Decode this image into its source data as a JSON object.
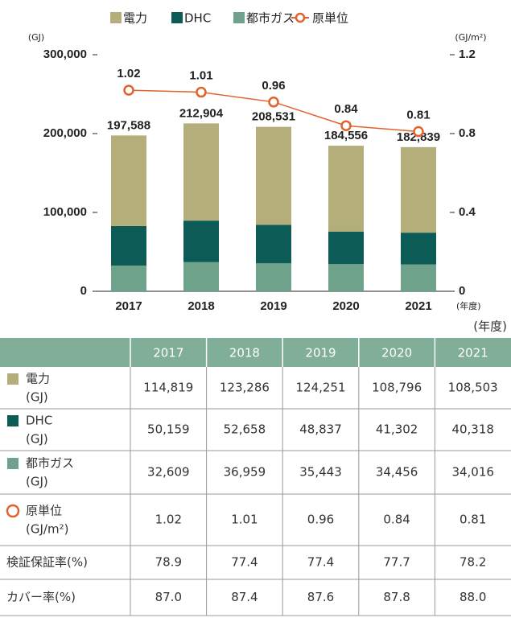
{
  "chart_data": {
    "type": "bar",
    "stacked": true,
    "categories": [
      "2017",
      "2018",
      "2019",
      "2020",
      "2021"
    ],
    "x_unit": "(年度)",
    "y_label": "(GJ)",
    "y2_label": "(GJ/m²)",
    "ylim": [
      0,
      300000
    ],
    "yticks": [
      0,
      {
        "value": 100000,
        "label": "100,000"
      },
      {
        "value": 200000,
        "label": "200,000"
      },
      {
        "value": 300000,
        "label": "300,000"
      }
    ],
    "y2lim": [
      0,
      1.2
    ],
    "y2ticks": [
      0,
      0.4,
      0.8,
      1.2
    ],
    "series": [
      {
        "name": "電力",
        "color": "#b3ae7a",
        "values": [
          114819,
          123286,
          124251,
          108796,
          108503
        ]
      },
      {
        "name": "DHC",
        "color": "#0c5b56",
        "values": [
          50159,
          52658,
          48837,
          41302,
          40318
        ]
      },
      {
        "name": "都市ガス",
        "color": "#6fa28a",
        "values": [
          32609,
          36959,
          35443,
          34456,
          34016
        ]
      },
      {
        "name": "原単位",
        "type": "line",
        "axis": "y2",
        "color": "#e2622b",
        "values": [
          1.02,
          1.01,
          0.96,
          0.84,
          0.81
        ],
        "value_labels": [
          "1.02",
          "1.01",
          "0.96",
          "0.84",
          "0.81"
        ]
      }
    ],
    "total_labels": [
      "197,588",
      "212,904",
      "208,531",
      "184,556",
      "182,839"
    ]
  },
  "table": {
    "unit": "(年度)",
    "rows": [
      {
        "label": "電力",
        "unit": "(GJ)",
        "cells": [
          "114,819",
          "123,286",
          "124,251",
          "108,796",
          "108,503"
        ]
      },
      {
        "label": "DHC",
        "unit": "(GJ)",
        "cells": [
          "50,159",
          "52,658",
          "48,837",
          "41,302",
          "40,318"
        ]
      },
      {
        "label": "都市ガス",
        "unit": "(GJ)",
        "cells": [
          "32,609",
          "36,959",
          "35,443",
          "34,456",
          "34,016"
        ]
      },
      {
        "label": "原単位",
        "unit": "(GJ/m²)",
        "cells": [
          "1.02",
          "1.01",
          "0.96",
          "0.84",
          "0.81"
        ]
      },
      {
        "label": "検証保証率(%)",
        "cells": [
          "78.9",
          "77.4",
          "77.4",
          "77.7",
          "78.2"
        ]
      },
      {
        "label": "カバー率(%)",
        "cells": [
          "87.0",
          "87.4",
          "87.6",
          "87.8",
          "88.0"
        ]
      }
    ]
  }
}
